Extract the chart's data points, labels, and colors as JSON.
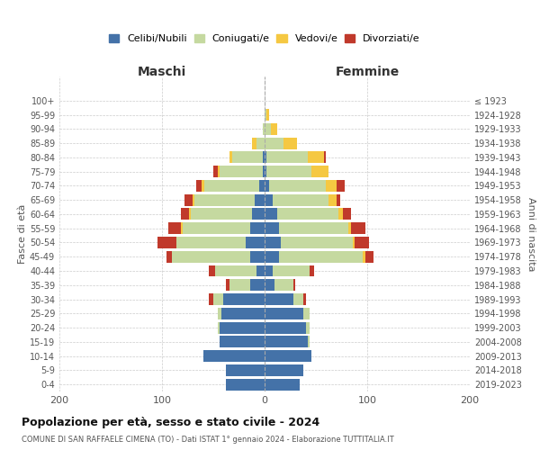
{
  "age_groups": [
    "0-4",
    "5-9",
    "10-14",
    "15-19",
    "20-24",
    "25-29",
    "30-34",
    "35-39",
    "40-44",
    "45-49",
    "50-54",
    "55-59",
    "60-64",
    "65-69",
    "70-74",
    "75-79",
    "80-84",
    "85-89",
    "90-94",
    "95-99",
    "100+"
  ],
  "birth_years": [
    "2019-2023",
    "2014-2018",
    "2009-2013",
    "2004-2008",
    "1999-2003",
    "1994-1998",
    "1989-1993",
    "1984-1988",
    "1979-1983",
    "1974-1978",
    "1969-1973",
    "1964-1968",
    "1959-1963",
    "1954-1958",
    "1949-1953",
    "1944-1948",
    "1939-1943",
    "1934-1938",
    "1929-1933",
    "1924-1928",
    "≤ 1923"
  ],
  "colors": {
    "celibi": "#4472a8",
    "coniugati": "#c5d9a0",
    "vedovi": "#f5c842",
    "divorziati": "#c0392b"
  },
  "maschi": {
    "celibi": [
      38,
      38,
      60,
      44,
      44,
      42,
      40,
      14,
      8,
      14,
      18,
      14,
      12,
      10,
      5,
      2,
      2,
      0,
      0,
      0,
      0
    ],
    "coniugati": [
      0,
      0,
      0,
      0,
      2,
      4,
      10,
      20,
      40,
      76,
      68,
      66,
      60,
      58,
      54,
      42,
      30,
      8,
      2,
      0,
      0
    ],
    "vedovi": [
      0,
      0,
      0,
      0,
      0,
      0,
      0,
      0,
      0,
      0,
      0,
      2,
      2,
      2,
      2,
      2,
      2,
      4,
      0,
      0,
      0
    ],
    "divorziati": [
      0,
      0,
      0,
      0,
      0,
      0,
      4,
      4,
      6,
      6,
      18,
      12,
      8,
      8,
      6,
      4,
      0,
      0,
      0,
      0,
      0
    ]
  },
  "femmine": {
    "celibi": [
      34,
      38,
      46,
      42,
      40,
      38,
      28,
      10,
      8,
      14,
      16,
      14,
      12,
      8,
      4,
      2,
      2,
      0,
      0,
      0,
      0
    ],
    "coniugati": [
      0,
      0,
      0,
      2,
      4,
      6,
      10,
      18,
      36,
      82,
      70,
      68,
      60,
      54,
      56,
      44,
      40,
      18,
      6,
      2,
      0
    ],
    "vedovi": [
      0,
      0,
      0,
      0,
      0,
      0,
      0,
      0,
      0,
      2,
      2,
      2,
      4,
      8,
      10,
      16,
      16,
      14,
      6,
      2,
      0
    ],
    "divorziati": [
      0,
      0,
      0,
      0,
      0,
      0,
      2,
      2,
      4,
      8,
      14,
      14,
      8,
      4,
      8,
      0,
      2,
      0,
      0,
      0,
      0
    ]
  },
  "title": "Popolazione per età, sesso e stato civile - 2024",
  "subtitle": "COMUNE DI SAN RAFFAELE CIMENA (TO) - Dati ISTAT 1° gennaio 2024 - Elaborazione TUTTITALIA.IT",
  "xlabel_left": "Maschi",
  "xlabel_right": "Femmine",
  "ylabel_left": "Fasce di età",
  "ylabel_right": "Anni di nascita",
  "xlim": 200,
  "legend_labels": [
    "Celibi/Nubili",
    "Coniugati/e",
    "Vedovi/e",
    "Divorziati/e"
  ],
  "background_color": "#ffffff"
}
